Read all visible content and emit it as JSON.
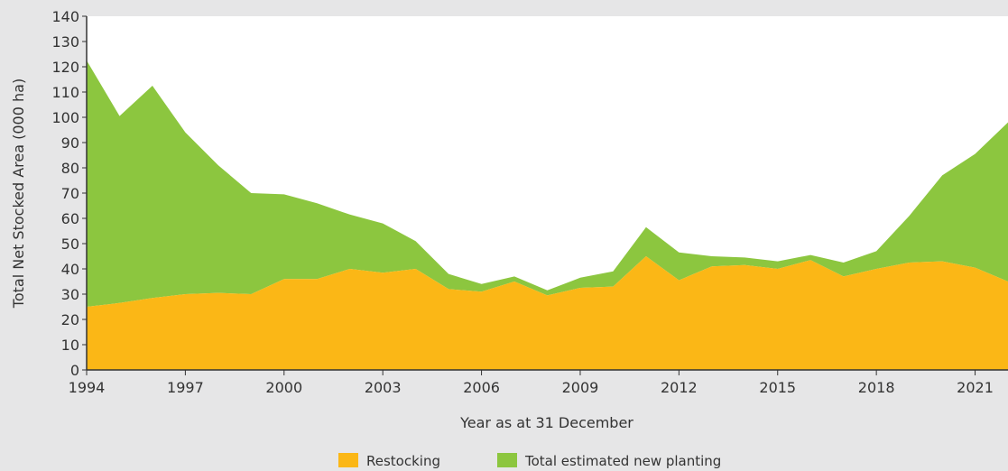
{
  "colors": {
    "background": "#e6e6e7",
    "plot_background": "#ffffff",
    "restocking": "#fbb716",
    "new_planting": "#8cc63f",
    "axis": "#333333"
  },
  "chart_data": {
    "type": "area",
    "stacked": true,
    "title": "",
    "xlabel": "Year as at 31 December",
    "ylabel": "Total Net Stocked Area (000 ha)",
    "xlim": [
      1994,
      2022
    ],
    "ylim": [
      0,
      140
    ],
    "x_tick_labels": [
      "1994",
      "1997",
      "2000",
      "2003",
      "2006",
      "2009",
      "2012",
      "2015",
      "2018",
      "2021"
    ],
    "y_tick_labels": [
      "0",
      "10",
      "20",
      "30",
      "40",
      "50",
      "60",
      "70",
      "80",
      "90",
      "100",
      "110",
      "120",
      "130",
      "140"
    ],
    "grid": false,
    "legend_position": "bottom",
    "x": [
      1994,
      1995,
      1996,
      1997,
      1998,
      1999,
      2000,
      2001,
      2002,
      2003,
      2004,
      2005,
      2006,
      2007,
      2008,
      2009,
      2010,
      2011,
      2012,
      2013,
      2014,
      2015,
      2016,
      2017,
      2018,
      2019,
      2020,
      2021,
      2022
    ],
    "series": [
      {
        "name": "Restocking",
        "values": [
          25,
          26.5,
          28.5,
          30,
          30.5,
          30,
          36,
          36,
          40,
          38.5,
          40,
          32,
          31,
          35,
          29.5,
          32.5,
          33,
          45,
          35.5,
          41,
          41.5,
          40,
          43.5,
          37,
          40,
          42.5,
          43,
          40.5,
          35
        ]
      },
      {
        "name": "Total estimated new planting",
        "values": [
          97.5,
          74,
          84,
          64,
          50.5,
          40,
          33.5,
          30,
          21.5,
          19.5,
          11,
          6,
          3,
          2,
          2,
          4,
          6,
          11.5,
          11,
          4,
          3,
          3,
          2,
          5.5,
          7,
          18.5,
          34,
          45,
          63
        ]
      }
    ]
  }
}
